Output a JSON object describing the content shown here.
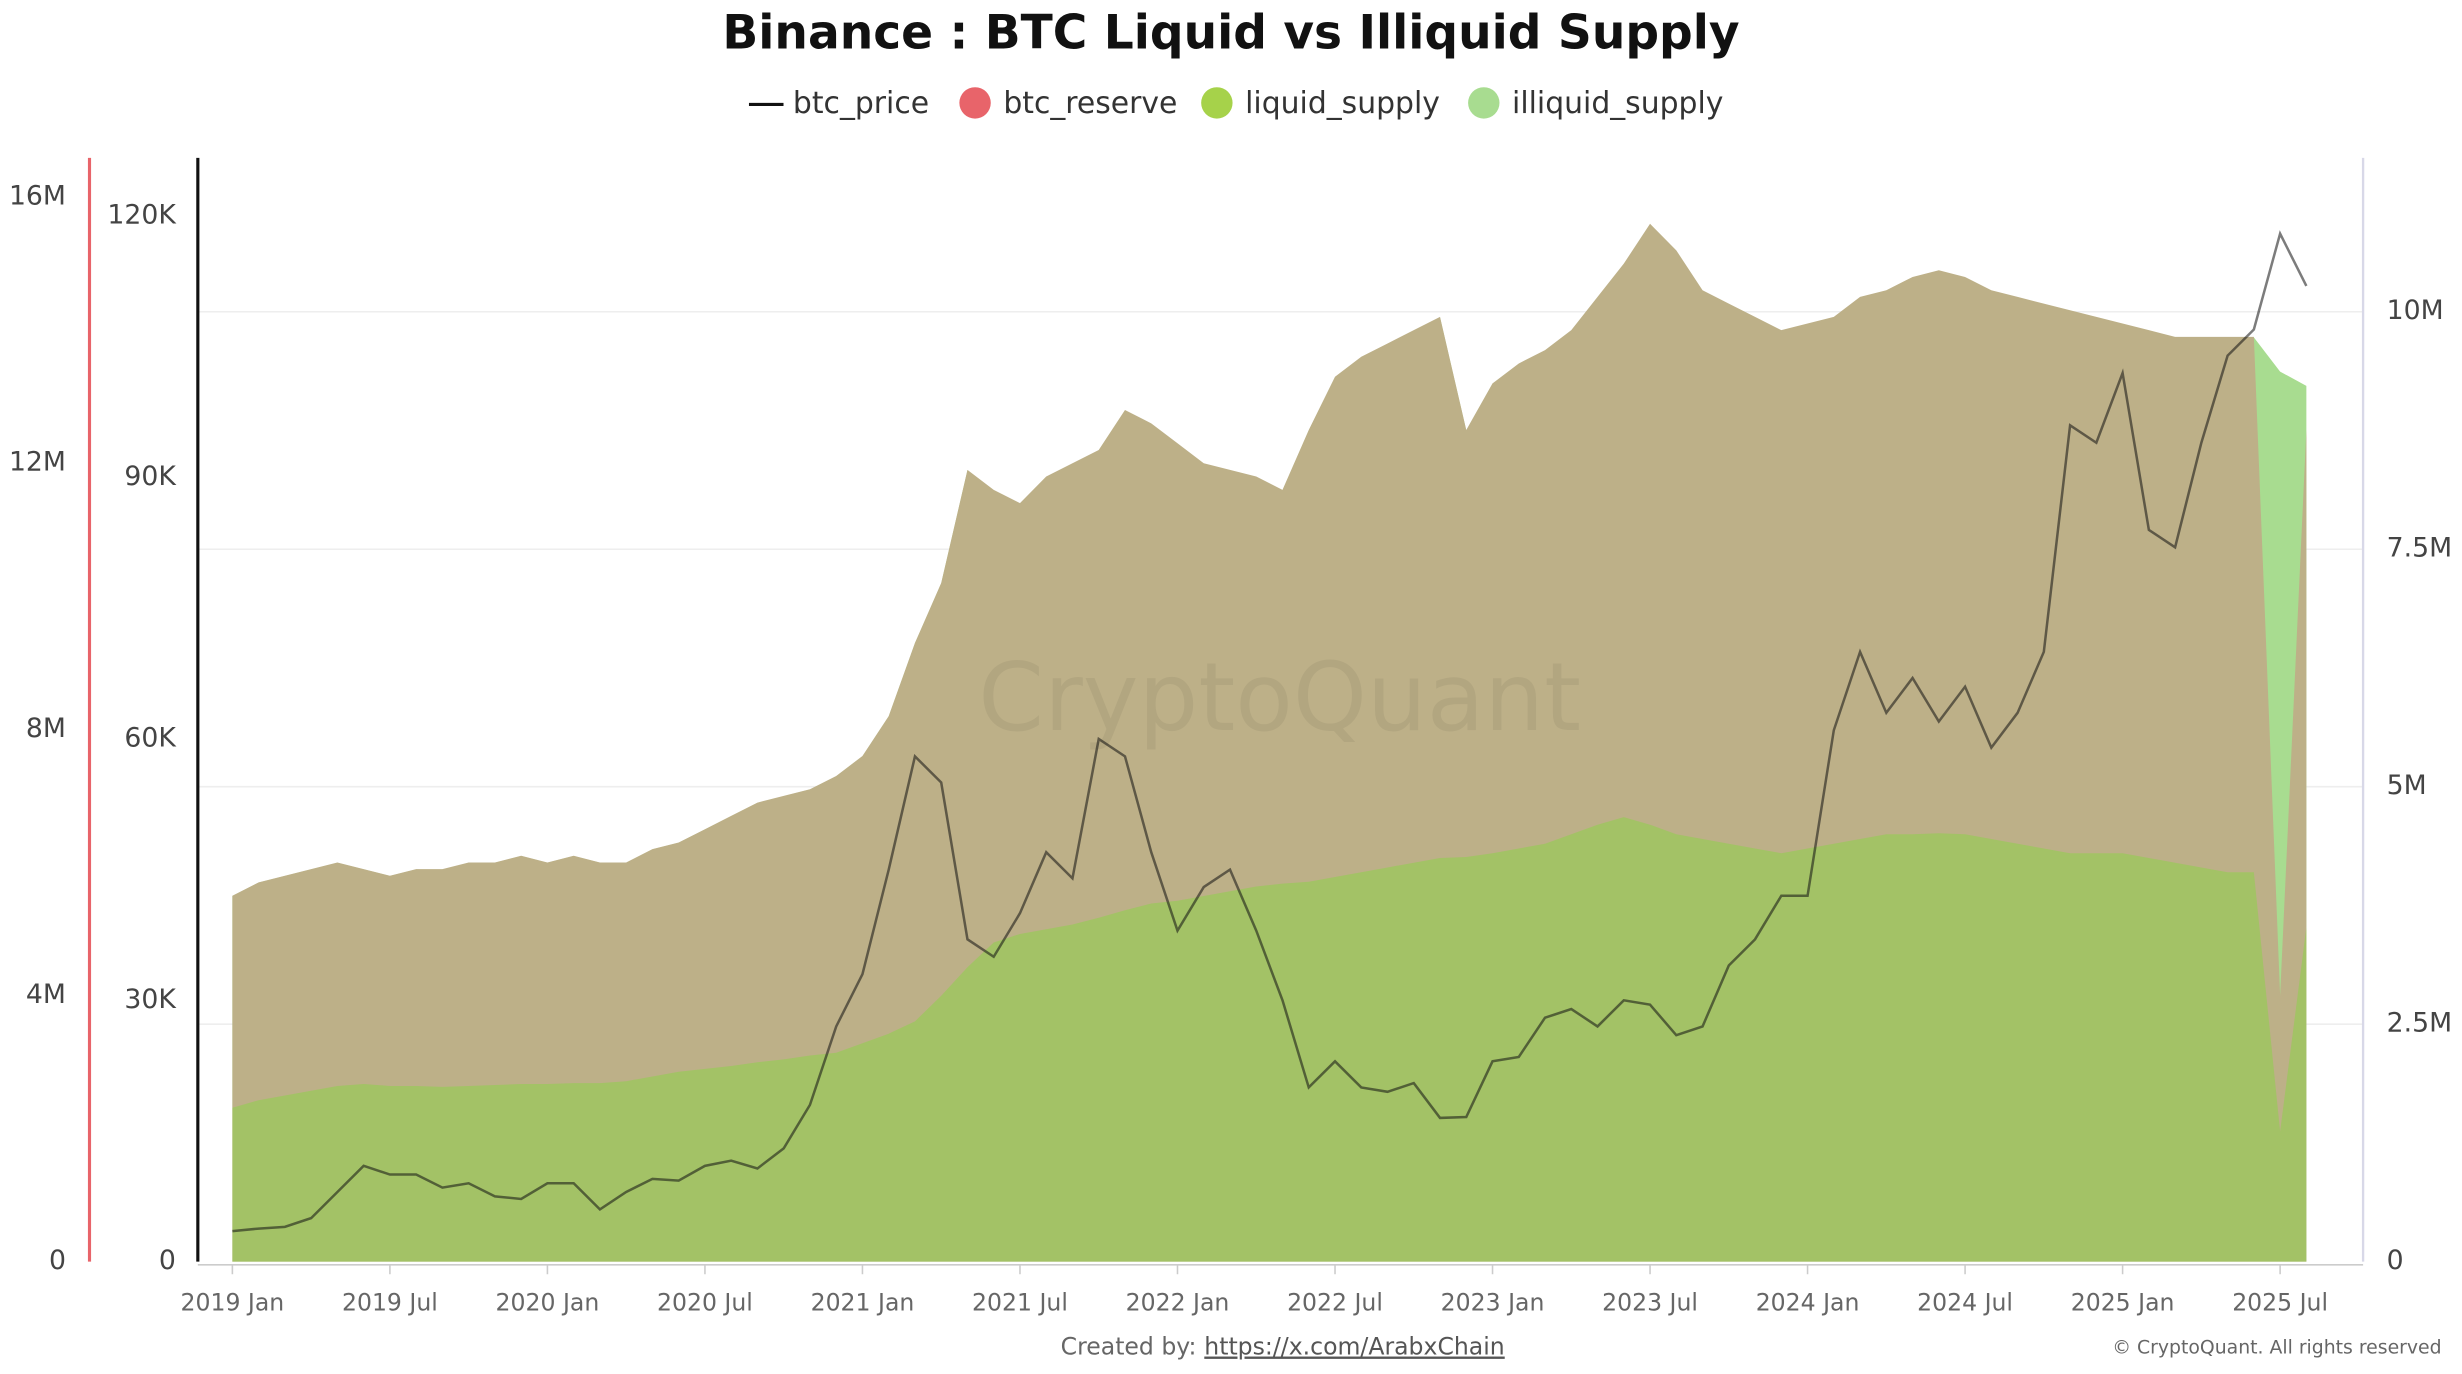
{
  "chart_data": {
    "type": "area",
    "title": "Binance : BTC Liquid vs Illiquid Supply",
    "x": [
      "2019-01",
      "2019-02",
      "2019-03",
      "2019-04",
      "2019-05",
      "2019-06",
      "2019-07",
      "2019-08",
      "2019-09",
      "2019-10",
      "2019-11",
      "2019-12",
      "2020-01",
      "2020-02",
      "2020-03",
      "2020-04",
      "2020-05",
      "2020-06",
      "2020-07",
      "2020-08",
      "2020-09",
      "2020-10",
      "2020-11",
      "2020-12",
      "2021-01",
      "2021-02",
      "2021-03",
      "2021-04",
      "2021-05",
      "2021-06",
      "2021-07",
      "2021-08",
      "2021-09",
      "2021-10",
      "2021-11",
      "2021-12",
      "2022-01",
      "2022-02",
      "2022-03",
      "2022-04",
      "2022-05",
      "2022-06",
      "2022-07",
      "2022-08",
      "2022-09",
      "2022-10",
      "2022-11",
      "2022-12",
      "2023-01",
      "2023-02",
      "2023-03",
      "2023-04",
      "2023-05",
      "2023-06",
      "2023-07",
      "2023-08",
      "2023-09",
      "2023-10",
      "2023-11",
      "2023-12",
      "2024-01",
      "2024-02",
      "2024-03",
      "2024-04",
      "2024-05",
      "2024-06",
      "2024-07",
      "2024-08",
      "2024-09",
      "2024-10",
      "2024-11",
      "2024-12",
      "2025-01",
      "2025-02",
      "2025-03",
      "2025-04",
      "2025-05",
      "2025-06",
      "2025-07",
      "2025-08"
    ],
    "xticks": [
      {
        "value": "2019-01",
        "label": "2019 Jan"
      },
      {
        "value": "2019-07",
        "label": "2019 Jul"
      },
      {
        "value": "2020-01",
        "label": "2020 Jan"
      },
      {
        "value": "2020-07",
        "label": "2020 Jul"
      },
      {
        "value": "2021-01",
        "label": "2021 Jan"
      },
      {
        "value": "2021-07",
        "label": "2021 Jul"
      },
      {
        "value": "2022-01",
        "label": "2022 Jan"
      },
      {
        "value": "2022-07",
        "label": "2022 Jul"
      },
      {
        "value": "2023-01",
        "label": "2023 Jan"
      },
      {
        "value": "2023-07",
        "label": "2023 Jul"
      },
      {
        "value": "2024-01",
        "label": "2024 Jan"
      },
      {
        "value": "2024-07",
        "label": "2024 Jul"
      },
      {
        "value": "2025-01",
        "label": "2025 Jan"
      },
      {
        "value": "2025-07",
        "label": "2025 Jul"
      }
    ],
    "ylim": [
      0,
      126700
    ],
    "yticks": [
      0,
      {
        "value": 30000,
        "label": "30K"
      },
      {
        "value": 60000,
        "label": "60K"
      },
      {
        "value": 90000,
        "label": "90K"
      },
      {
        "value": 120000,
        "label": "120K"
      }
    ],
    "y3lim": [
      0,
      16590000
    ],
    "y3ticks": [
      0,
      {
        "value": 4000000,
        "label": "4M"
      },
      {
        "value": 8000000,
        "label": "8M"
      },
      {
        "value": 12000000,
        "label": "12M"
      },
      {
        "value": 16000000,
        "label": "16M"
      }
    ],
    "y2lim": [
      0,
      11620000
    ],
    "y2ticks": [
      0,
      {
        "value": 2500000,
        "label": "2.5M"
      },
      {
        "value": 5000000,
        "label": "5M"
      },
      {
        "value": 7500000,
        "label": "7.5M"
      },
      {
        "value": 10000000,
        "label": "10M"
      }
    ],
    "grid": true,
    "series": [
      {
        "name": "btc_price",
        "color": "#111111",
        "axis": "y",
        "values": [
          3500,
          3800,
          4000,
          5000,
          8000,
          11000,
          10000,
          10000,
          8500,
          9000,
          7500,
          7200,
          9000,
          9000,
          6000,
          8000,
          9500,
          9300,
          11000,
          11600,
          10700,
          13000,
          18000,
          27000,
          33000,
          45000,
          58000,
          55000,
          37000,
          35000,
          40000,
          47000,
          44000,
          60000,
          58000,
          47000,
          38000,
          43000,
          45000,
          38000,
          30000,
          20000,
          23000,
          20000,
          19500,
          20500,
          16500,
          16600,
          23000,
          23500,
          28000,
          29000,
          27000,
          30000,
          29500,
          26000,
          27000,
          34000,
          37000,
          42000,
          42000,
          61000,
          70000,
          63000,
          67000,
          62000,
          66000,
          59000,
          63000,
          70000,
          96000,
          94000,
          102000,
          84000,
          82000,
          94000,
          104000,
          107000,
          118000,
          112000
        ]
      },
      {
        "name": "btc_reserve",
        "color": "#e8646a",
        "fill": "#bdb088",
        "axis": "y3",
        "values": [
          5500000.0,
          5700000.0,
          5800000.0,
          5900000.0,
          6000000.0,
          5900000.0,
          5800000.0,
          5900000.0,
          5900000.0,
          6000000.0,
          6000000.0,
          6100000.0,
          6000000.0,
          6100000.0,
          6000000.0,
          6000000.0,
          6200000.0,
          6300000.0,
          6500000.0,
          6700000.0,
          6900000.0,
          7000000.0,
          7100000.0,
          7300000.0,
          7600000.0,
          8200000.0,
          9300000.0,
          10200000.0,
          11900000.0,
          11600000.0,
          11400000.0,
          11800000.0,
          12000000.0,
          12200000.0,
          12800000.0,
          12600000.0,
          12300000.0,
          12000000.0,
          11900000.0,
          11800000.0,
          11600000.0,
          12500000.0,
          13300000.0,
          13600000.0,
          13800000.0,
          14000000.0,
          14200000.0,
          12500000.0,
          13200000.0,
          13500000.0,
          13700000.0,
          14000000.0,
          14500000.0,
          15000000.0,
          15600000.0,
          15200000.0,
          14600000.0,
          14400000.0,
          14200000.0,
          14000000.0,
          14100000.0,
          14200000.0,
          14500000.0,
          14600000.0,
          14800000.0,
          14900000.0,
          14800000.0,
          14600000.0,
          14500000.0,
          14400000.0,
          14300000.0,
          14200000.0,
          14100000.0,
          14000000.0,
          13900000.0,
          13900000.0,
          13900000.0,
          13900000.0,
          4000000.0,
          12500000.0
        ]
      },
      {
        "name": "liquid_supply",
        "color": "#a6d24a",
        "fill": "#a3c266",
        "axis": "y2",
        "values": [
          1620000.0,
          1700000.0,
          1750000.0,
          1800000.0,
          1850000.0,
          1870000.0,
          1850000.0,
          1850000.0,
          1840000.0,
          1850000.0,
          1860000.0,
          1870000.0,
          1870000.0,
          1880000.0,
          1880000.0,
          1900000.0,
          1950000.0,
          2000000.0,
          2030000.0,
          2060000.0,
          2100000.0,
          2130000.0,
          2170000.0,
          2200000.0,
          2300000.0,
          2400000.0,
          2530000.0,
          2800000.0,
          3100000.0,
          3360000.0,
          3450000.0,
          3500000.0,
          3550000.0,
          3620000.0,
          3700000.0,
          3770000.0,
          3800000.0,
          3850000.0,
          3900000.0,
          3950000.0,
          3980000.0,
          4000000.0,
          4050000.0,
          4100000.0,
          4150000.0,
          4200000.0,
          4250000.0,
          4260000.0,
          4300000.0,
          4350000.0,
          4400000.0,
          4500000.0,
          4600000.0,
          4680000.0,
          4600000.0,
          4500000.0,
          4450000.0,
          4400000.0,
          4350000.0,
          4300000.0,
          4350000.0,
          4400000.0,
          4450000.0,
          4500000.0,
          4500000.0,
          4510000.0,
          4500000.0,
          4450000.0,
          4400000.0,
          4350000.0,
          4300000.0,
          4300000.0,
          4300000.0,
          4250000.0,
          4200000.0,
          4150000.0,
          4100000.0,
          4100000.0,
          1370000.0,
          3520000.0
        ]
      },
      {
        "name": "illiquid_supply",
        "color": "#a8dc90",
        "fill": "#a8dc90",
        "axis": "y2",
        "stacked": true,
        "values": [
          2230000.0,
          2290000.0,
          2310000.0,
          2330000.0,
          2350000.0,
          2260000.0,
          2210000.0,
          2280000.0,
          2280000.0,
          2350000.0,
          2340000.0,
          2400000.0,
          2330000.0,
          2390000.0,
          2320000.0,
          2300000.0,
          2390000.0,
          2410000.0,
          2520000.0,
          2630000.0,
          2730000.0,
          2770000.0,
          2800000.0,
          2910000.0,
          3020000.0,
          3340000.0,
          3980000.0,
          4340000.0,
          5230000.0,
          4760000.0,
          4530000.0,
          4760000.0,
          4850000.0,
          4920000.0,
          5260000.0,
          5050000.0,
          4810000.0,
          4550000.0,
          4430000.0,
          4310000.0,
          4140000.0,
          4750000.0,
          5260000.0,
          5420000.0,
          5510000.0,
          5600000.0,
          5690000.0,
          4490000.0,
          4940000.0,
          5100000.0,
          5190000.0,
          5300000.0,
          5550000.0,
          5820000.0,
          6320000.0,
          6140000.0,
          5770000.0,
          5680000.0,
          5590000.0,
          5500000.0,
          5520000.0,
          5540000.0,
          5700000.0,
          5720000.0,
          5860000.0,
          5920000.0,
          5860000.0,
          5770000.0,
          5750000.0,
          5730000.0,
          5710000.0,
          5640000.0,
          5570000.0,
          5550000.0,
          5530000.0,
          5580000.0,
          5630000.0,
          5630000.0,
          8000000.0,
          5700000.0
        ]
      }
    ],
    "watermark": "CryptoQuant",
    "footer": {
      "created_by": "Created by:",
      "link": "https://x.com/ArabxChain",
      "copyright": "© CryptoQuant. All rights reserved"
    }
  }
}
